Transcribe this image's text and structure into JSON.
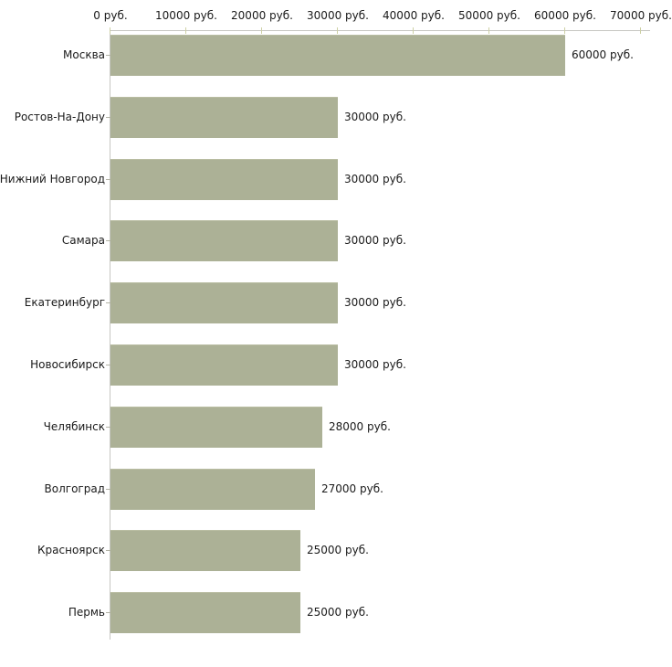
{
  "chart_data": {
    "type": "bar",
    "orientation": "horizontal",
    "title": "",
    "xlabel": "",
    "ylabel": "",
    "categories": [
      "Москва",
      "Ростов-На-Дону",
      "Нижний Новгород",
      "Самара",
      "Екатеринбург",
      "Новосибирск",
      "Челябинск",
      "Волгоград",
      "Красноярск",
      "Пермь"
    ],
    "values": [
      60000,
      30000,
      30000,
      30000,
      30000,
      30000,
      28000,
      27000,
      25000,
      25000
    ],
    "value_labels": [
      "60000 руб.",
      "30000 руб.",
      "30000 руб.",
      "30000 руб.",
      "30000 руб.",
      "30000 руб.",
      "28000 руб.",
      "27000 руб.",
      "25000 руб.",
      "25000 руб."
    ],
    "x_axis": {
      "position": "top",
      "tick_values": [
        0,
        10000,
        20000,
        30000,
        40000,
        50000,
        60000,
        70000
      ],
      "tick_labels": [
        "0 руб.",
        "10000 руб.",
        "20000 руб.",
        "30000 руб.",
        "40000 руб.",
        "50000 руб.",
        "60000 руб.",
        "70000 руб."
      ],
      "xlim": [
        0,
        70000
      ]
    },
    "grid": false,
    "legend": "none",
    "colors": {
      "bar": "#acb196",
      "bar_border": "#b9bda2",
      "axis_line": "#c6c6c2",
      "tick_mark": "#cdd0a4",
      "category_tick": "#b3b3a6",
      "text": "#1a1a1a",
      "background": "#ffffff"
    }
  }
}
